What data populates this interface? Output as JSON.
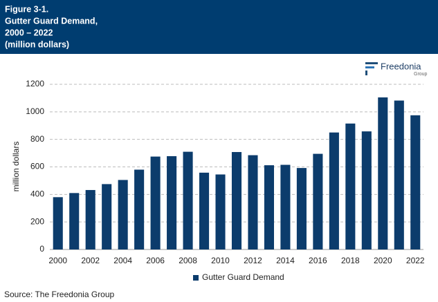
{
  "chart_data": {
    "type": "bar",
    "title_lines": [
      "Figure 3-1.",
      "Gutter Guard Demand,",
      "2000 – 2022",
      "(million dollars)"
    ],
    "logo": {
      "name": "Freedonia",
      "sub": "Group"
    },
    "categories": [
      "2000",
      null,
      "2002",
      null,
      "2004",
      null,
      "2006",
      null,
      "2008",
      null,
      "2010",
      null,
      "2012",
      null,
      "2014",
      null,
      "2016",
      null,
      "2018",
      null,
      "2020",
      null,
      "2022"
    ],
    "series": [
      {
        "name": "Gutter Guard Demand",
        "color": "#0c3c6c",
        "values": [
          380,
          410,
          432,
          475,
          505,
          580,
          675,
          678,
          710,
          558,
          545,
          708,
          685,
          612,
          615,
          592,
          695,
          850,
          915,
          858,
          1105,
          1082,
          975
        ]
      }
    ],
    "ylabel": "million dollars",
    "ylim": [
      0,
      1200
    ],
    "yticks": [
      0,
      200,
      400,
      600,
      800,
      1000,
      1200
    ],
    "grid": true,
    "legend": "bottom",
    "source": "Source: The Freedonia Group"
  }
}
